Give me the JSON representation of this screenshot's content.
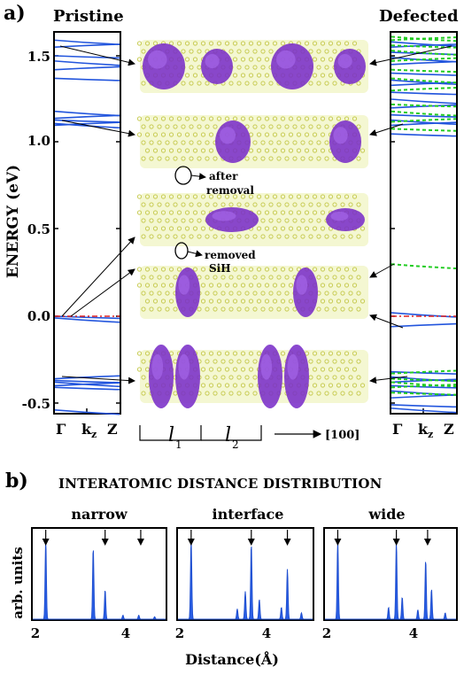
{
  "panel_a": {
    "label": "a)",
    "pristine_title": "Pristine",
    "defected_title": "Defected",
    "ylabel": "ENERGY (eV)",
    "yticks": [
      "1.5",
      "1.0",
      "0.5",
      "0.0",
      "-0.5"
    ],
    "kpoints": [
      "Γ",
      "k",
      "z",
      "Z"
    ],
    "annotations": {
      "after": "after",
      "removal": "removal",
      "removed": "removed",
      "sih": "SiH"
    },
    "length_labels": [
      "l",
      "1",
      "l",
      "2"
    ],
    "direction": "[100]",
    "band_colors": {
      "band": "#2255dd",
      "defect": "#22cc22",
      "fermi": "#dd2222"
    }
  },
  "panel_b": {
    "label": "b)",
    "title": "INTERATOMIC DISTANCE DISTRIBUTION",
    "ylabel": "arb. units",
    "xlabel": "Distance(Å)",
    "xticks": [
      "2",
      "4"
    ],
    "subplots": [
      "narrow",
      "interface",
      "wide"
    ]
  },
  "chart_data": [
    {
      "type": "line",
      "title": "Pristine",
      "ylabel": "ENERGY (eV)",
      "ylim": [
        -0.55,
        1.62
      ],
      "x_ticks": [
        "Γ",
        "kz",
        "Z"
      ],
      "series": [
        {
          "values": [
            1.59,
            1.55,
            1.5,
            1.47,
            1.42,
            1.37,
            1.18,
            1.14,
            1.13,
            1.11,
            1.1,
            0.0,
            -0.01,
            -0.36,
            -0.37,
            -0.38,
            -0.4,
            -0.41,
            -0.54
          ]
        }
      ],
      "fermi_level": 0.0
    },
    {
      "type": "line",
      "title": "Defected",
      "ylim": [
        -0.55,
        1.62
      ],
      "x_ticks": [
        "Γ",
        "kz",
        "Z"
      ],
      "series": [
        {
          "values": [
            1.58,
            1.55,
            1.52,
            1.49,
            1.45,
            1.4,
            1.36,
            1.33,
            1.29,
            1.25,
            1.2,
            1.16,
            1.13,
            1.1,
            1.05,
            0.02,
            -0.06,
            -0.32,
            -0.35,
            -0.38,
            -0.4,
            -0.43,
            -0.47,
            -0.51,
            -0.53
          ]
        },
        {
          "values": [
            1.61,
            1.59,
            1.56,
            1.53,
            1.47,
            1.42,
            1.37,
            1.3,
            1.22,
            1.18,
            1.12,
            1.08,
            0.3,
            -0.33,
            -0.36,
            -0.38,
            -0.41,
            -0.44
          ]
        }
      ],
      "fermi_level": 0.0
    },
    {
      "type": "line",
      "title": "narrow",
      "xlabel": "Distance(Å)",
      "ylabel": "arb. units",
      "xlim": [
        2.0,
        5.4
      ],
      "peaks": [
        [
          2.35,
          1.0
        ],
        [
          3.55,
          0.9
        ],
        [
          3.85,
          0.37
        ],
        [
          4.3,
          0.05
        ],
        [
          4.7,
          0.05
        ],
        [
          5.1,
          0.03
        ]
      ],
      "arrows": [
        2.35,
        3.85,
        4.75
      ]
    },
    {
      "type": "line",
      "title": "interface",
      "xlim": [
        2.0,
        5.4
      ],
      "peaks": [
        [
          2.35,
          1.0
        ],
        [
          3.5,
          0.13
        ],
        [
          3.7,
          0.35
        ],
        [
          3.85,
          0.95
        ],
        [
          4.05,
          0.25
        ],
        [
          4.6,
          0.15
        ],
        [
          4.75,
          0.63
        ],
        [
          5.1,
          0.08
        ]
      ],
      "arrows": [
        2.35,
        3.85,
        4.75
      ]
    },
    {
      "type": "line",
      "title": "wide",
      "xlim": [
        2.0,
        5.4
      ],
      "peaks": [
        [
          2.35,
          1.0
        ],
        [
          3.65,
          0.15
        ],
        [
          3.85,
          0.98
        ],
        [
          4.0,
          0.28
        ],
        [
          4.4,
          0.12
        ],
        [
          4.6,
          0.75
        ],
        [
          4.75,
          0.38
        ],
        [
          5.1,
          0.08
        ]
      ],
      "arrows": [
        2.35,
        3.85,
        4.65
      ]
    }
  ]
}
